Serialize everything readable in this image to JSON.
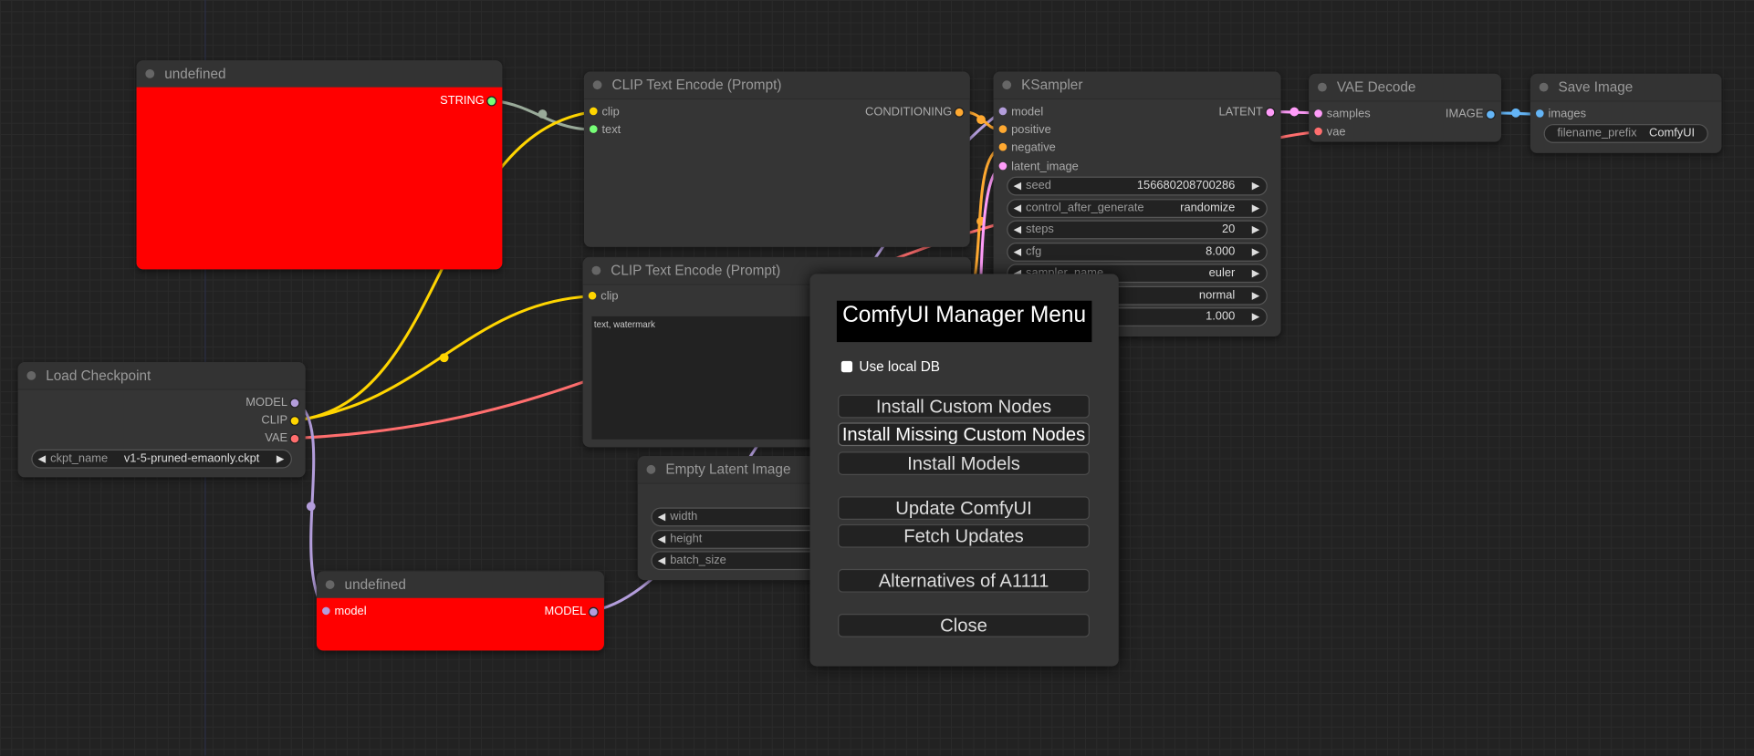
{
  "nodes": {
    "undefined_top": {
      "title": "undefined",
      "outputs": [
        "STRING"
      ]
    },
    "clip1": {
      "title": "CLIP Text Encode (Prompt)",
      "inputs": [
        "clip",
        "text"
      ],
      "outputs": [
        "CONDITIONING"
      ]
    },
    "ksampler": {
      "title": "KSampler",
      "inputs": [
        "model",
        "positive",
        "negative",
        "latent_image"
      ],
      "outputs": [
        "LATENT"
      ],
      "widgets": [
        {
          "label": "seed",
          "value": "156680208700286"
        },
        {
          "label": "control_after_generate",
          "value": "randomize"
        },
        {
          "label": "steps",
          "value": "20"
        },
        {
          "label": "cfg",
          "value": "8.000"
        },
        {
          "label": "sampler_name",
          "value": "euler"
        },
        {
          "label": "",
          "value": "normal"
        },
        {
          "label": "",
          "value": "1.000"
        }
      ]
    },
    "vae_decode": {
      "title": "VAE Decode",
      "inputs": [
        "samples",
        "vae"
      ],
      "outputs": [
        "IMAGE"
      ]
    },
    "save_image": {
      "title": "Save Image",
      "inputs": [
        "images"
      ],
      "widgets": [
        {
          "label": "filename_prefix",
          "value": "ComfyUI"
        }
      ]
    },
    "clip2": {
      "title": "CLIP Text Encode (Prompt)",
      "inputs": [
        "clip"
      ],
      "text": "text, watermark"
    },
    "load_checkpoint": {
      "title": "Load Checkpoint",
      "outputs": [
        "MODEL",
        "CLIP",
        "VAE"
      ],
      "widgets": [
        {
          "label": "ckpt_name",
          "value": "v1-5-pruned-emaonly.ckpt"
        }
      ]
    },
    "empty_latent": {
      "title": "Empty Latent Image",
      "widgets": [
        {
          "label": "width"
        },
        {
          "label": "height"
        },
        {
          "label": "batch_size"
        }
      ]
    },
    "undefined_bottom": {
      "title": "undefined",
      "inputs": [
        "model"
      ],
      "outputs": [
        "MODEL"
      ]
    }
  },
  "dialog": {
    "title": "ComfyUI Manager Menu",
    "checkbox_label": "Use local DB",
    "checkbox_checked": false,
    "buttons": [
      "Install Custom Nodes",
      "Install Missing Custom Nodes",
      "Install Models",
      "Update ComfyUI",
      "Fetch Updates",
      "Alternatives of A1111",
      "Close"
    ]
  },
  "colors": {
    "clip": "#ffd500",
    "model": "#b39ddb",
    "conditioning": "#ffa931",
    "latent": "#ff9cf9",
    "vae": "#ff6e6e",
    "image": "#64b5f6",
    "string": "#77ff77",
    "node_error": "#ff0000"
  }
}
